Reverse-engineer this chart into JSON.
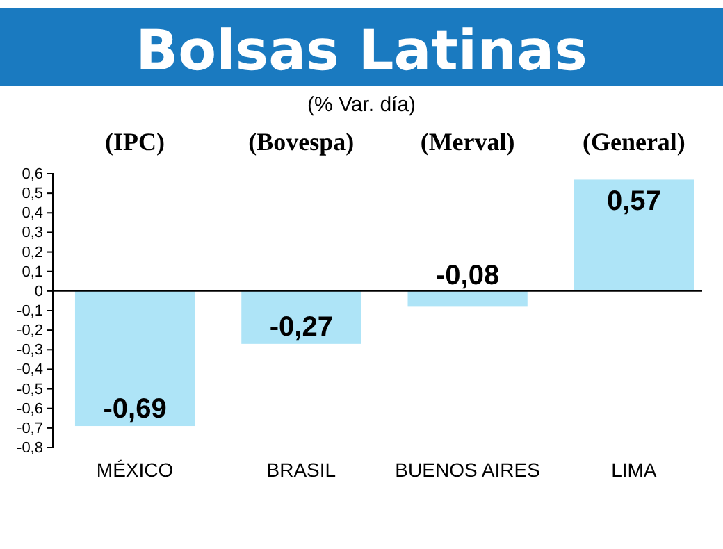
{
  "chart_data": {
    "type": "bar",
    "title": "Bolsas Latinas",
    "subtitle": "(% Var. día)",
    "categories": [
      "MÉXICO",
      "BRASIL",
      "BUENOS AIRES",
      "LIMA"
    ],
    "values": [
      -0.69,
      -0.27,
      -0.08,
      0.57
    ],
    "color": "#aee4f7",
    "value_labels": [
      "-0,69",
      "-0,27",
      "-0,08",
      "0,57"
    ],
    "ylim": [
      -0.8,
      0.6
    ],
    "yticks": [
      {
        "value": -0.8,
        "label": "-0,8"
      },
      {
        "value": -0.7,
        "label": "-0,7"
      },
      {
        "value": -0.6,
        "label": "-0,6"
      },
      {
        "value": -0.5,
        "label": "-0,5"
      },
      {
        "value": -0.4,
        "label": "-0,4"
      },
      {
        "value": -0.3,
        "label": "-0,3"
      },
      {
        "value": -0.2,
        "label": "-0,2"
      },
      {
        "value": -0.1,
        "label": "-0,1"
      },
      0,
      {
        "value": 0.1,
        "label": "0,1"
      },
      {
        "value": 0.2,
        "label": "0,2"
      },
      {
        "value": 0.3,
        "label": "0,3"
      },
      {
        "value": 0.4,
        "label": "0,4"
      },
      {
        "value": 0.5,
        "label": "0,5"
      },
      {
        "value": 0.6,
        "label": "0,6"
      }
    ],
    "annotations": [
      "(IPC)",
      "(Bovespa)",
      "(Merval)",
      "(General)"
    ]
  }
}
